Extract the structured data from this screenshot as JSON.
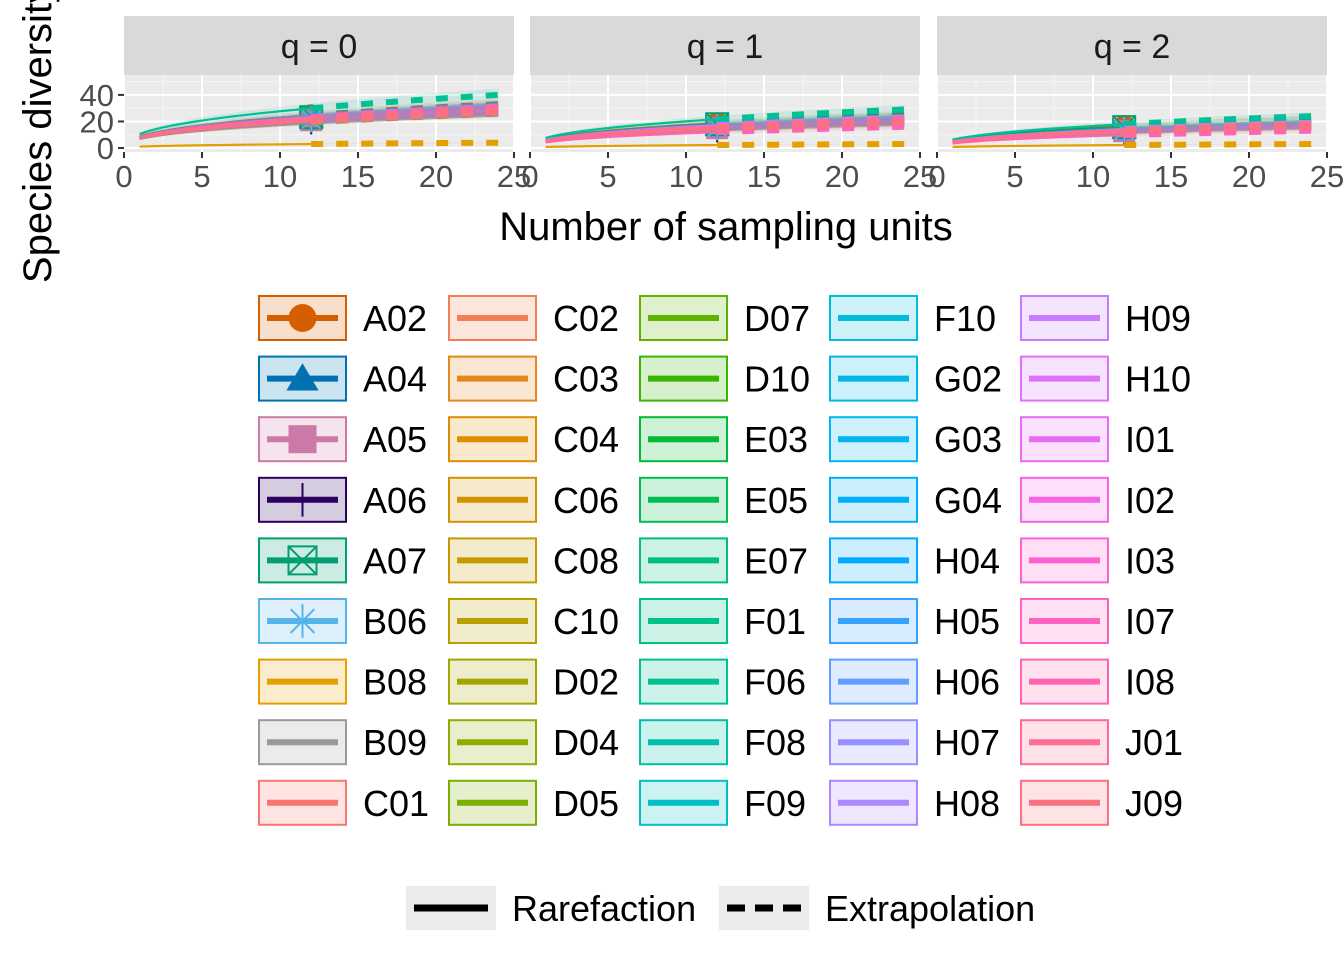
{
  "chart_data": {
    "type": "line",
    "xlabel": "Number of sampling units",
    "ylabel": "Species diversity",
    "facets": [
      {
        "label": "q = 0"
      },
      {
        "label": "q = 1"
      },
      {
        "label": "q = 2"
      }
    ],
    "xlim": [
      0,
      25
    ],
    "ylim": [
      -3,
      55
    ],
    "x_ticks": [
      0,
      5,
      10,
      15,
      20,
      25
    ],
    "y_ticks": [
      0,
      20,
      40
    ],
    "reference_sample_size": 12,
    "extrapolation_to": 24,
    "linetype_legend": [
      {
        "label": "Rarefaction",
        "style": "solid"
      },
      {
        "label": "Extrapolation",
        "style": "dashed"
      }
    ],
    "series": [
      {
        "name": "A02",
        "color": "#D55E00",
        "shape": "circle",
        "end": [
          33,
          25,
          22
        ]
      },
      {
        "name": "A04",
        "color": "#0072B2",
        "shape": "triangle",
        "end": [
          30,
          22,
          19
        ]
      },
      {
        "name": "A05",
        "color": "#CC79A7",
        "shape": "square",
        "end": [
          28,
          20,
          17
        ]
      },
      {
        "name": "A06",
        "color": "#2C0060",
        "shape": "plus",
        "end": [
          27,
          19,
          16
        ]
      },
      {
        "name": "A07",
        "color": "#009E73",
        "shape": "boxx",
        "end": [
          31,
          24,
          21
        ]
      },
      {
        "name": "B06",
        "color": "#56B4E9",
        "shape": "star",
        "end": [
          29,
          21,
          18
        ]
      },
      {
        "name": "B08",
        "color": "#E69F00",
        "shape": "none",
        "end": [
          4,
          3,
          3
        ]
      },
      {
        "name": "B09",
        "color": "#999999",
        "shape": "none",
        "end": [
          26,
          18,
          15
        ]
      },
      {
        "name": "C01",
        "color": "#F8766D",
        "shape": "none",
        "end": [
          28,
          20,
          17
        ]
      },
      {
        "name": "C02",
        "color": "#F07F54",
        "shape": "none",
        "end": [
          27,
          19,
          16
        ]
      },
      {
        "name": "C03",
        "color": "#E7861B",
        "shape": "none",
        "end": [
          29,
          21,
          18
        ]
      },
      {
        "name": "C04",
        "color": "#DE8C00",
        "shape": "none",
        "end": [
          30,
          22,
          18
        ]
      },
      {
        "name": "C06",
        "color": "#D19300",
        "shape": "none",
        "end": [
          27,
          19,
          16
        ]
      },
      {
        "name": "C08",
        "color": "#C49A00",
        "shape": "none",
        "end": [
          26,
          18,
          15
        ]
      },
      {
        "name": "C10",
        "color": "#B79F00",
        "shape": "none",
        "end": [
          28,
          20,
          17
        ]
      },
      {
        "name": "D02",
        "color": "#A3A500",
        "shape": "none",
        "end": [
          29,
          21,
          17
        ]
      },
      {
        "name": "D04",
        "color": "#93AA00",
        "shape": "none",
        "end": [
          27,
          19,
          16
        ]
      },
      {
        "name": "D05",
        "color": "#7CAE00",
        "shape": "none",
        "end": [
          30,
          22,
          18
        ]
      },
      {
        "name": "D07",
        "color": "#5EB300",
        "shape": "none",
        "end": [
          28,
          20,
          17
        ]
      },
      {
        "name": "D10",
        "color": "#39B600",
        "shape": "none",
        "end": [
          31,
          23,
          19
        ]
      },
      {
        "name": "E03",
        "color": "#00BA38",
        "shape": "none",
        "end": [
          29,
          21,
          18
        ]
      },
      {
        "name": "E05",
        "color": "#00BC51",
        "shape": "none",
        "end": [
          27,
          19,
          16
        ]
      },
      {
        "name": "E07",
        "color": "#00BF7D",
        "shape": "none",
        "end": [
          30,
          22,
          19
        ]
      },
      {
        "name": "F01",
        "color": "#00C08B",
        "shape": "none",
        "end": [
          28,
          20,
          17
        ]
      },
      {
        "name": "F06",
        "color": "#00C094",
        "shape": "none",
        "end": [
          40,
          29,
          24
        ]
      },
      {
        "name": "F08",
        "color": "#00C0A8",
        "shape": "none",
        "end": [
          29,
          21,
          18
        ]
      },
      {
        "name": "F09",
        "color": "#00BFC4",
        "shape": "none",
        "end": [
          27,
          19,
          16
        ]
      },
      {
        "name": "F10",
        "color": "#00BCD8",
        "shape": "none",
        "end": [
          31,
          23,
          19
        ]
      },
      {
        "name": "G02",
        "color": "#00B8E7",
        "shape": "none",
        "end": [
          28,
          20,
          17
        ]
      },
      {
        "name": "G03",
        "color": "#00B4F0",
        "shape": "none",
        "end": [
          30,
          22,
          18
        ]
      },
      {
        "name": "G04",
        "color": "#00ADFA",
        "shape": "none",
        "end": [
          29,
          21,
          18
        ]
      },
      {
        "name": "H04",
        "color": "#00A9FF",
        "shape": "none",
        "end": [
          32,
          23,
          19
        ]
      },
      {
        "name": "H05",
        "color": "#35A2FF",
        "shape": "none",
        "end": [
          28,
          20,
          17
        ]
      },
      {
        "name": "H06",
        "color": "#619CFF",
        "shape": "none",
        "end": [
          27,
          19,
          16
        ]
      },
      {
        "name": "H07",
        "color": "#9590FF",
        "shape": "none",
        "end": [
          30,
          22,
          18
        ]
      },
      {
        "name": "H08",
        "color": "#AC88FF",
        "shape": "none",
        "end": [
          29,
          21,
          17
        ]
      },
      {
        "name": "H09",
        "color": "#C77CFF",
        "shape": "none",
        "end": [
          31,
          23,
          19
        ]
      },
      {
        "name": "H10",
        "color": "#DC71FA",
        "shape": "none",
        "end": [
          28,
          20,
          17
        ]
      },
      {
        "name": "I01",
        "color": "#E76BF3",
        "shape": "none",
        "end": [
          27,
          19,
          16
        ]
      },
      {
        "name": "I02",
        "color": "#F564E3",
        "shape": "none",
        "end": [
          30,
          22,
          18
        ]
      },
      {
        "name": "I03",
        "color": "#FD61D1",
        "shape": "none",
        "end": [
          29,
          21,
          17
        ]
      },
      {
        "name": "I07",
        "color": "#FF62BC",
        "shape": "none",
        "end": [
          28,
          20,
          17
        ]
      },
      {
        "name": "I08",
        "color": "#FF64B0",
        "shape": "none",
        "end": [
          31,
          16,
          13
        ]
      },
      {
        "name": "J01",
        "color": "#FF6C91",
        "shape": "none",
        "end": [
          27,
          19,
          16
        ]
      },
      {
        "name": "J09",
        "color": "#FC717F",
        "shape": "none",
        "end": [
          29,
          21,
          18
        ]
      }
    ]
  }
}
